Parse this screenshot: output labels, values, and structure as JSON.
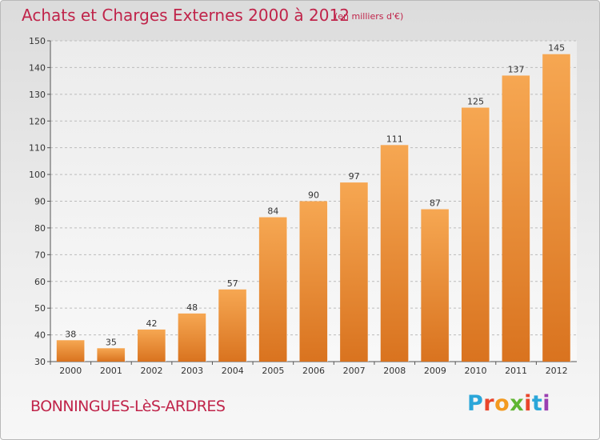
{
  "header": {
    "title": "Achats et Charges Externes 2000 à 2012",
    "unit": "(en milliers d'€)"
  },
  "footer": {
    "place": "BONNINGUES-LèS-ARDRES",
    "brand": "Proxiti",
    "brand_letters": [
      "P",
      "r",
      "o",
      "x",
      "i",
      "t",
      "i"
    ],
    "brand_colors": [
      "#2aa6d9",
      "#e9452b",
      "#f39a1f",
      "#5fb531",
      "#e9452b",
      "#2aa6d9",
      "#9a3fb1"
    ]
  },
  "colors": {
    "title": "#c0244a",
    "bar_light": "#f6a752",
    "bar_dark": "#d9731f",
    "grid": "#bbbbbb"
  },
  "chart_data": {
    "type": "bar",
    "title": "Achats et Charges Externes 2000 à 2012",
    "subtitle": "(en milliers d'€)",
    "xlabel": "",
    "ylabel": "",
    "categories": [
      "2000",
      "2001",
      "2002",
      "2003",
      "2004",
      "2005",
      "2006",
      "2007",
      "2008",
      "2009",
      "2010",
      "2011",
      "2012"
    ],
    "values": [
      38,
      35,
      42,
      48,
      57,
      84,
      90,
      97,
      111,
      87,
      125,
      137,
      145
    ],
    "ylim": [
      30,
      150
    ],
    "yticks": [
      30,
      40,
      50,
      60,
      70,
      80,
      90,
      100,
      110,
      120,
      130,
      140,
      150
    ],
    "grid": "horizontal dashed",
    "legend": "none"
  }
}
